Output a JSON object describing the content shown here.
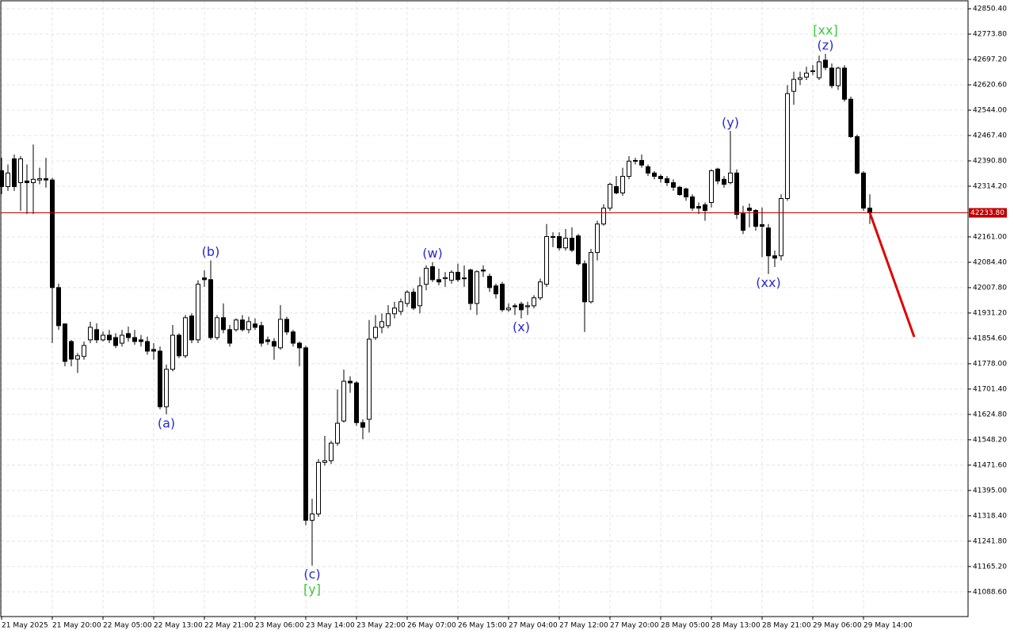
{
  "chart_data": {
    "type": "candlestick",
    "categories": [
      "21 May 2025",
      null,
      null,
      null,
      null,
      null,
      null,
      null,
      "21 May 20:00",
      null,
      null,
      null,
      null,
      null,
      null,
      null,
      "22 May 05:00",
      null,
      null,
      null,
      null,
      null,
      null,
      null,
      "22 May 13:00",
      null,
      null,
      null,
      null,
      null,
      null,
      null,
      "22 May 21:00",
      null,
      null,
      null,
      null,
      null,
      null,
      null,
      "23 May 06:00",
      null,
      null,
      null,
      null,
      null,
      null,
      null,
      "23 May 14:00",
      null,
      null,
      null,
      null,
      null,
      null,
      null,
      "23 May 22:00",
      null,
      null,
      null,
      null,
      null,
      null,
      null,
      "26 May 07:00",
      null,
      null,
      null,
      null,
      null,
      null,
      null,
      "26 May 15:00",
      null,
      null,
      null,
      null,
      null,
      null,
      null,
      "27 May 04:00",
      null,
      null,
      null,
      null,
      null,
      null,
      null,
      "27 May 12:00",
      null,
      null,
      null,
      null,
      null,
      null,
      null,
      "27 May 20:00",
      null,
      null,
      null,
      null,
      null,
      null,
      null,
      "28 May 05:00",
      null,
      null,
      null,
      null,
      null,
      null,
      null,
      "28 May 13:00",
      null,
      null,
      null,
      null,
      null,
      null,
      null,
      "28 May 21:00",
      null,
      null,
      null,
      null,
      null,
      null,
      null,
      "29 May 06:00",
      null,
      null,
      null,
      null,
      null,
      null,
      null,
      "29 May 14:00",
      null
    ],
    "open": [
      42361,
      42313,
      42397,
      42325,
      42330,
      42325,
      42333,
      42337,
      42333,
      42008,
      41898,
      41845,
      41792,
      41800,
      41850,
      41881,
      41850,
      41864,
      41857,
      41840,
      41869,
      41857,
      41850,
      41845,
      41821,
      41816,
      41648,
      41761,
      41864,
      41802,
      41922,
      41850,
      42037,
      42032,
      41857,
      41917,
      41881,
      41881,
      41910,
      41881,
      41898,
      41893,
      41850,
      41845,
      41826,
      41912,
      41874,
      41840,
      41826,
      41305,
      41324,
      41480,
      41485,
      41538,
      41605,
      41725,
      41720,
      41600,
      41610,
      41857,
      41888,
      41893,
      41929,
      41936,
      41960,
      41994,
      41953,
      42018,
      42071,
      42032,
      42035,
      42030,
      42054,
      42035,
      42061,
      41960,
      42061,
      42042,
      42013,
      42018,
      41941,
      41953,
      41958,
      41950,
      41953,
      41977,
      42018,
      42162,
      42162,
      42128,
      42157,
      42164,
      42080,
      41965,
      42114,
      42200,
      42248,
      42313,
      42294,
      42344,
      42390,
      42392,
      42373,
      42354,
      42344,
      42337,
      42325,
      42311,
      42306,
      42282,
      42253,
      42258,
      42265,
      42366,
      42335,
      42325,
      42354,
      42234,
      42248,
      42241,
      42198,
      42188,
      42104,
      42104,
      42277,
      42601,
      42637,
      42644,
      42661,
      42642,
      42695,
      42671,
      42618,
      42671,
      42577,
      42464,
      42354,
      42248
    ],
    "high": [
      42400,
      42380,
      42410,
      42405,
      42380,
      42440,
      42370,
      42400,
      42340,
      42020,
      41900,
      41850,
      41810,
      41845,
      41905,
      41900,
      41875,
      41880,
      41870,
      41880,
      41890,
      41880,
      41865,
      41860,
      41840,
      41830,
      41775,
      41895,
      41870,
      41925,
      41930,
      42030,
      42060,
      42090,
      41925,
      41960,
      41895,
      41915,
      41925,
      41920,
      41915,
      41905,
      41860,
      41855,
      41955,
      41920,
      41880,
      41845,
      41832,
      41370,
      41490,
      41560,
      41545,
      41700,
      41760,
      41740,
      41725,
      41610,
      41910,
      41925,
      41930,
      41955,
      41965,
      41975,
      42000,
      42005,
      42040,
      42075,
      42085,
      42065,
      42055,
      42060,
      42080,
      42075,
      42065,
      42060,
      42075,
      42050,
      42020,
      42025,
      41960,
      41960,
      41965,
      41965,
      41985,
      42035,
      42200,
      42175,
      42175,
      42185,
      42190,
      42170,
      42090,
      42125,
      42210,
      42260,
      42325,
      42345,
      42370,
      42405,
      42400,
      42410,
      42380,
      42360,
      42350,
      42345,
      42335,
      42315,
      42310,
      42290,
      42265,
      42265,
      42365,
      42370,
      42345,
      42481,
      42365,
      42255,
      42262,
      42245,
      42250,
      42200,
      42120,
      42290,
      42620,
      42660,
      42660,
      42675,
      42680,
      42709,
      42714,
      42685,
      42675,
      42680,
      42585,
      42470,
      42360,
      42290
    ],
    "low": [
      42290,
      42300,
      42300,
      42240,
      42230,
      42230,
      42320,
      42310,
      41840,
      41880,
      41770,
      41770,
      41750,
      41790,
      41840,
      41840,
      41845,
      41840,
      41825,
      41830,
      41845,
      41835,
      41830,
      41805,
      41790,
      41640,
      41625,
      41755,
      41795,
      41795,
      41840,
      41840,
      42010,
      41850,
      41850,
      41870,
      41830,
      41875,
      41875,
      41870,
      41880,
      41830,
      41835,
      41790,
      41820,
      41865,
      41830,
      41770,
      41290,
      41168,
      41315,
      41470,
      41475,
      41530,
      41600,
      41690,
      41590,
      41550,
      41570,
      41850,
      41870,
      41885,
      41915,
      41925,
      41950,
      41940,
      41930,
      42000,
      42025,
      42015,
      42010,
      42020,
      42025,
      42010,
      41940,
      41925,
      42040,
      41995,
      41975,
      41935,
      41935,
      41925,
      41915,
      41925,
      41945,
      41970,
      42010,
      42130,
      42120,
      42120,
      42115,
      42075,
      41874,
      41960,
      42090,
      42195,
      42240,
      42290,
      42285,
      42335,
      42380,
      42370,
      42345,
      42335,
      42325,
      42315,
      42300,
      42285,
      42270,
      42240,
      42230,
      42210,
      42250,
      42320,
      42310,
      42320,
      42215,
      42170,
      42190,
      42180,
      42100,
      42049,
      42070,
      42090,
      42270,
      42560,
      42620,
      42635,
      42650,
      42635,
      42665,
      42610,
      42605,
      42570,
      42460,
      42350,
      42240,
      42200
    ],
    "close": [
      42313,
      42354,
      42313,
      42397,
      42325,
      42335,
      42337,
      42333,
      42008,
      41893,
      41785,
      41792,
      41802,
      41833,
      41888,
      41850,
      41864,
      41850,
      41833,
      41864,
      41857,
      41845,
      41845,
      41816,
      41816,
      41648,
      41761,
      41864,
      41802,
      41917,
      41850,
      42018,
      42032,
      41857,
      41917,
      41881,
      41840,
      41910,
      41881,
      41905,
      41888,
      41840,
      41845,
      41831,
      41912,
      41874,
      41840,
      41826,
      41305,
      41324,
      41480,
      41485,
      41538,
      41598,
      41725,
      41720,
      41600,
      41586,
      41852,
      41888,
      41905,
      41929,
      41946,
      41965,
      41994,
      41946,
      42013,
      42066,
      42032,
      42025,
      42038,
      42054,
      42032,
      42037,
      41960,
      42056,
      42058,
      42008,
      41989,
      41941,
      41946,
      41950,
      41941,
      41953,
      41977,
      42025,
      42162,
      42160,
      42128,
      42157,
      42121,
      42080,
      41965,
      42114,
      42200,
      42248,
      42320,
      42294,
      42344,
      42390,
      42392,
      42378,
      42354,
      42344,
      42337,
      42325,
      42311,
      42289,
      42282,
      42248,
      42248,
      42241,
      42361,
      42330,
      42320,
      42354,
      42229,
      42181,
      42241,
      42193,
      42193,
      42104,
      42097,
      42277,
      42594,
      42637,
      42642,
      42656,
      42663,
      42690,
      42673,
      42618,
      42671,
      42577,
      42464,
      42354,
      42248,
      42234
    ],
    "up_color": "#ffffff",
    "down_color": "#000000",
    "xlim": [
      0,
      152.5
    ],
    "ylim": [
      41014,
      42872
    ],
    "yticks": [
      {
        "value": 42850.4,
        "label": "42850.40"
      },
      {
        "value": 42773.8,
        "label": "42773.80"
      },
      {
        "value": 42697.2,
        "label": "42697.20"
      },
      {
        "value": 42620.6,
        "label": "42620.60"
      },
      {
        "value": 42544,
        "label": "42544.00"
      },
      {
        "value": 42467.4,
        "label": "42467.40"
      },
      {
        "value": 42390.8,
        "label": "42390.80"
      },
      {
        "value": 42314.2,
        "label": "42314.20"
      },
      {
        "value": 42161,
        "label": "42161.00"
      },
      {
        "value": 42084.4,
        "label": "42084.40"
      },
      {
        "value": 42007.8,
        "label": "42007.80"
      },
      {
        "value": 41931.2,
        "label": "41931.20"
      },
      {
        "value": 41854.6,
        "label": "41854.60"
      },
      {
        "value": 41778,
        "label": "41778.00"
      },
      {
        "value": 41701.4,
        "label": "41701.40"
      },
      {
        "value": 41624.8,
        "label": "41624.80"
      },
      {
        "value": 41548.2,
        "label": "41548.20"
      },
      {
        "value": 41471.6,
        "label": "41471.60"
      },
      {
        "value": 41395,
        "label": "41395.00"
      },
      {
        "value": 41318.4,
        "label": "41318.40"
      },
      {
        "value": 41241.8,
        "label": "41241.80"
      },
      {
        "value": 41165.2,
        "label": "41165.20"
      },
      {
        "value": 41088.6,
        "label": "41088.60"
      }
    ],
    "grid": true,
    "last_price": {
      "value": 42233.8,
      "label": "42233.80",
      "color": "#c00000"
    },
    "forecast": {
      "color": "#e00000",
      "x": [
        137,
        144
      ],
      "values": [
        42234,
        41859
      ]
    },
    "annotations": [
      {
        "text": "(a)",
        "color": "#2828d0",
        "candle": 26,
        "side": "below"
      },
      {
        "text": "(b)",
        "color": "#2828d0",
        "candle": 33,
        "side": "above"
      },
      {
        "text": "(c)",
        "color": "#2828d0",
        "candle": 49,
        "side": "below"
      },
      {
        "text": "[y]",
        "color": "#3cc83c",
        "candle": 49,
        "side": "below"
      },
      {
        "text": "(w)",
        "color": "#2828d0",
        "candle": 68,
        "side": "above"
      },
      {
        "text": "(x)",
        "color": "#2828d0",
        "candle": 82,
        "side": "below"
      },
      {
        "text": "(y)",
        "color": "#2828d0",
        "candle": 115,
        "side": "above"
      },
      {
        "text": "(xx)",
        "color": "#2828d0",
        "candle": 121,
        "side": "below"
      },
      {
        "text": "(z)",
        "color": "#2828d0",
        "candle": 130,
        "side": "above"
      },
      {
        "text": "[xx]",
        "color": "#3cc83c",
        "candle": 130,
        "side": "above"
      }
    ]
  }
}
